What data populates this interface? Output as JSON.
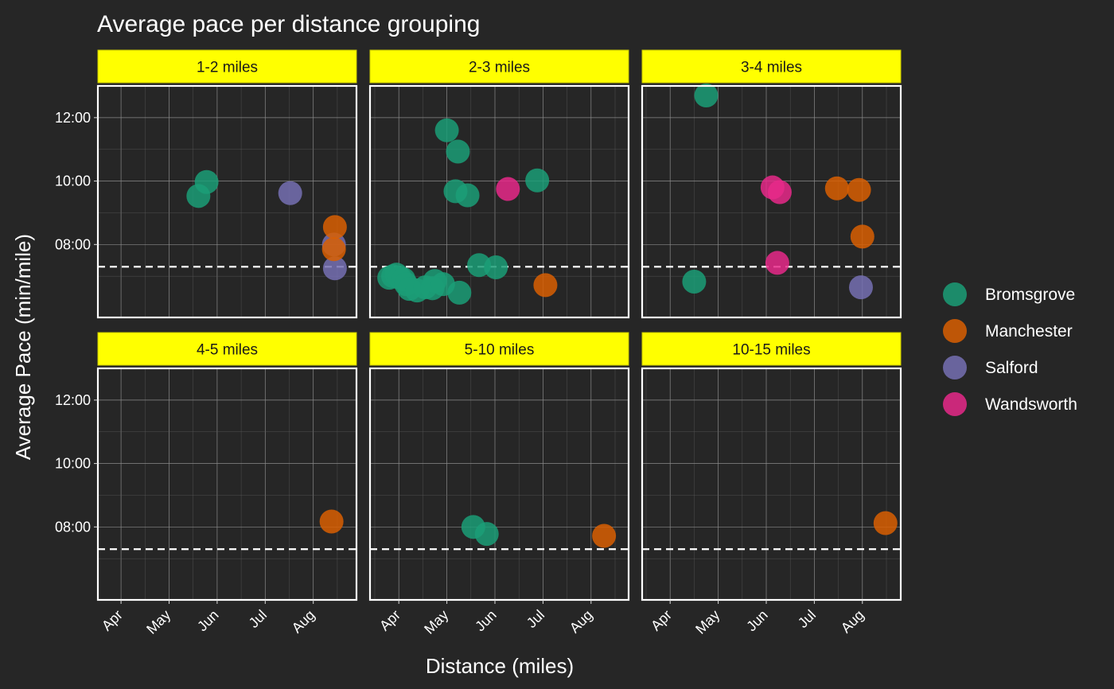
{
  "chart_data": {
    "type": "scatter",
    "title": "Average pace per distance grouping",
    "xlabel": "Distance (miles)",
    "ylabel": "Average Pace (min/mile)",
    "x_ticks": [
      "Apr",
      "May",
      "Jun",
      "Jul",
      "Aug"
    ],
    "y_ticks": [
      "08:00",
      "10:00",
      "12:00"
    ],
    "y_tick_values": [
      8,
      10,
      12
    ],
    "ylim": [
      5.7,
      13.0
    ],
    "xlim_note": "months Mar-end to Aug-mid (x in month units, Apr=4)",
    "reference_line": {
      "y": 7.3,
      "style": "dashed"
    },
    "legend_position": "right",
    "series": [
      {
        "name": "Bromsgrove",
        "color": "#1b9e77"
      },
      {
        "name": "Manchester",
        "color": "#d95f02"
      },
      {
        "name": "Salford",
        "color": "#7570b3"
      },
      {
        "name": "Wandsworth",
        "color": "#e7298a"
      }
    ],
    "panels": [
      {
        "label": "1-2 miles",
        "points": [
          {
            "x": 5.61,
            "y": 9.53,
            "s": 0
          },
          {
            "x": 5.78,
            "y": 9.97,
            "s": 0
          },
          {
            "x": 7.52,
            "y": 9.62,
            "s": 2
          },
          {
            "x": 8.43,
            "y": 8.0,
            "s": 2
          },
          {
            "x": 8.45,
            "y": 7.25,
            "s": 2
          },
          {
            "x": 8.45,
            "y": 8.55,
            "s": 1
          },
          {
            "x": 8.43,
            "y": 7.85,
            "s": 1
          }
        ]
      },
      {
        "label": "2-3 miles",
        "points": [
          {
            "x": 3.8,
            "y": 6.95,
            "s": 0
          },
          {
            "x": 3.88,
            "y": 7.0,
            "s": 0
          },
          {
            "x": 3.95,
            "y": 7.05,
            "s": 0
          },
          {
            "x": 4.02,
            "y": 6.95,
            "s": 0
          },
          {
            "x": 4.1,
            "y": 6.9,
            "s": 0
          },
          {
            "x": 4.15,
            "y": 6.75,
            "s": 0
          },
          {
            "x": 4.22,
            "y": 6.6,
            "s": 0
          },
          {
            "x": 4.38,
            "y": 6.55,
            "s": 0
          },
          {
            "x": 4.55,
            "y": 6.65,
            "s": 0
          },
          {
            "x": 4.7,
            "y": 6.62,
            "s": 0
          },
          {
            "x": 4.75,
            "y": 6.85,
            "s": 0
          },
          {
            "x": 4.92,
            "y": 6.75,
            "s": 0
          },
          {
            "x": 5.0,
            "y": 11.6,
            "s": 0
          },
          {
            "x": 5.18,
            "y": 9.68,
            "s": 0
          },
          {
            "x": 5.23,
            "y": 10.93,
            "s": 0
          },
          {
            "x": 5.26,
            "y": 6.48,
            "s": 0
          },
          {
            "x": 5.43,
            "y": 9.55,
            "s": 0
          },
          {
            "x": 5.67,
            "y": 7.35,
            "s": 0
          },
          {
            "x": 6.02,
            "y": 7.28,
            "s": 0
          },
          {
            "x": 6.27,
            "y": 9.75,
            "s": 3
          },
          {
            "x": 6.88,
            "y": 10.02,
            "s": 0
          },
          {
            "x": 7.05,
            "y": 6.72,
            "s": 1
          }
        ]
      },
      {
        "label": "3-4 miles",
        "points": [
          {
            "x": 4.75,
            "y": 12.7,
            "s": 0
          },
          {
            "x": 4.5,
            "y": 6.83,
            "s": 0
          },
          {
            "x": 6.13,
            "y": 9.8,
            "s": 3
          },
          {
            "x": 6.28,
            "y": 9.65,
            "s": 3
          },
          {
            "x": 6.23,
            "y": 7.42,
            "s": 3
          },
          {
            "x": 7.47,
            "y": 9.77,
            "s": 1
          },
          {
            "x": 7.93,
            "y": 9.72,
            "s": 1
          },
          {
            "x": 8.0,
            "y": 8.25,
            "s": 1
          },
          {
            "x": 7.97,
            "y": 6.65,
            "s": 2
          }
        ]
      },
      {
        "label": "4-5 miles",
        "points": [
          {
            "x": 8.38,
            "y": 8.17,
            "s": 1
          }
        ]
      },
      {
        "label": "5-10 miles",
        "points": [
          {
            "x": 5.55,
            "y": 8.0,
            "s": 0
          },
          {
            "x": 5.83,
            "y": 7.78,
            "s": 0
          },
          {
            "x": 8.27,
            "y": 7.72,
            "s": 1
          }
        ]
      },
      {
        "label": "10-15 miles",
        "points": [
          {
            "x": 8.48,
            "y": 8.12,
            "s": 1
          }
        ]
      }
    ]
  }
}
